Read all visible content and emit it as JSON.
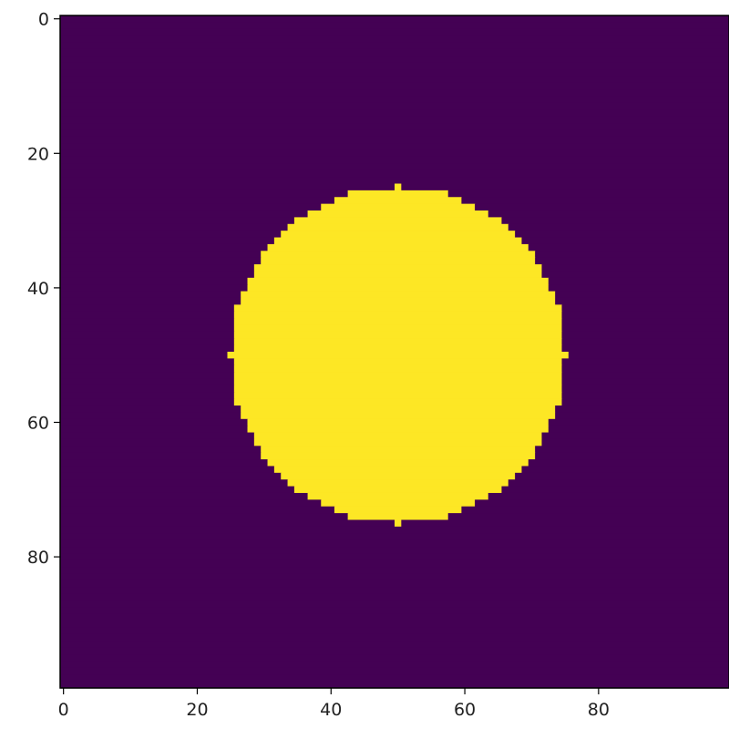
{
  "chart_data": {
    "type": "heatmap",
    "grid": {
      "rows": 100,
      "cols": 100
    },
    "mask": {
      "shape": "circle",
      "center": [
        50,
        50
      ],
      "radius": 25,
      "inside_value": 1,
      "outside_value": 0
    },
    "colormap": {
      "low": "#440154",
      "high": "#fde725",
      "name": "viridis"
    },
    "x_ticks": [
      0,
      20,
      40,
      60,
      80
    ],
    "y_ticks": [
      0,
      20,
      40,
      60,
      80
    ],
    "xlim": [
      -0.5,
      99.5
    ],
    "ylim": [
      99.5,
      -0.5
    ],
    "title": "",
    "xlabel": "",
    "ylabel": ""
  }
}
